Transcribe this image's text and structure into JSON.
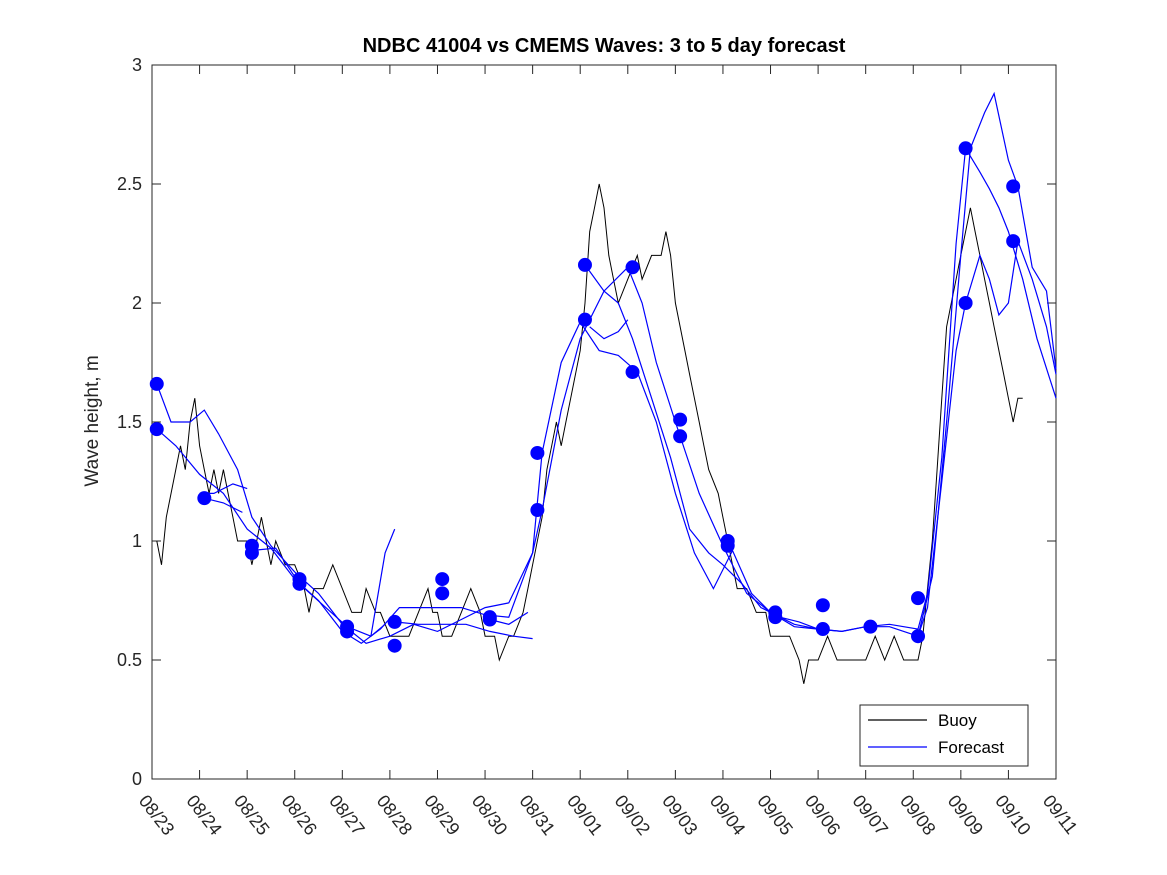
{
  "chart_data": {
    "type": "line",
    "title": "NDBC 41004 vs CMEMS Waves: 3 to 5 day forecast",
    "xlabel": "",
    "ylabel": "Wave height, m",
    "xlim": [
      0,
      19
    ],
    "ylim": [
      0,
      3
    ],
    "xticks": [
      0,
      1,
      2,
      3,
      4,
      5,
      6,
      7,
      8,
      9,
      10,
      11,
      12,
      13,
      14,
      15,
      16,
      17,
      18,
      19
    ],
    "xtick_labels": [
      "08/23",
      "08/24",
      "08/25",
      "08/26",
      "08/27",
      "08/28",
      "08/29",
      "08/30",
      "08/31",
      "09/01",
      "09/02",
      "09/03",
      "09/04",
      "09/05",
      "09/06",
      "09/07",
      "09/08",
      "09/09",
      "09/10",
      "09/11"
    ],
    "yticks": [
      0,
      0.5,
      1,
      1.5,
      2,
      2.5,
      3
    ],
    "ytick_labels": [
      "0",
      "0.5",
      "1",
      "1.5",
      "2",
      "2.5",
      "3"
    ],
    "legend": {
      "position": "bottom-right",
      "entries": [
        "Buoy",
        "Forecast"
      ]
    },
    "colors": {
      "buoy": "#000000",
      "forecast": "#0000ff",
      "axis": "#262626"
    },
    "buoy": {
      "name": "Buoy",
      "points": [
        [
          0.1,
          1.0
        ],
        [
          0.2,
          0.9
        ],
        [
          0.3,
          1.1
        ],
        [
          0.5,
          1.3
        ],
        [
          0.6,
          1.4
        ],
        [
          0.7,
          1.3
        ],
        [
          0.8,
          1.5
        ],
        [
          0.9,
          1.6
        ],
        [
          1.0,
          1.4
        ],
        [
          1.1,
          1.3
        ],
        [
          1.2,
          1.2
        ],
        [
          1.3,
          1.3
        ],
        [
          1.4,
          1.2
        ],
        [
          1.5,
          1.3
        ],
        [
          1.6,
          1.2
        ],
        [
          1.7,
          1.1
        ],
        [
          1.8,
          1.0
        ],
        [
          2.0,
          1.0
        ],
        [
          2.1,
          0.9
        ],
        [
          2.2,
          1.0
        ],
        [
          2.3,
          1.1
        ],
        [
          2.5,
          0.9
        ],
        [
          2.6,
          1.0
        ],
        [
          2.8,
          0.9
        ],
        [
          3.0,
          0.9
        ],
        [
          3.2,
          0.8
        ],
        [
          3.3,
          0.7
        ],
        [
          3.4,
          0.8
        ],
        [
          3.6,
          0.8
        ],
        [
          3.8,
          0.9
        ],
        [
          4.0,
          0.8
        ],
        [
          4.2,
          0.7
        ],
        [
          4.4,
          0.7
        ],
        [
          4.5,
          0.8
        ],
        [
          4.7,
          0.7
        ],
        [
          4.8,
          0.7
        ],
        [
          5.0,
          0.6
        ],
        [
          5.2,
          0.6
        ],
        [
          5.4,
          0.6
        ],
        [
          5.6,
          0.7
        ],
        [
          5.8,
          0.8
        ],
        [
          5.9,
          0.7
        ],
        [
          6.0,
          0.7
        ],
        [
          6.1,
          0.6
        ],
        [
          6.3,
          0.6
        ],
        [
          6.5,
          0.7
        ],
        [
          6.7,
          0.8
        ],
        [
          6.9,
          0.7
        ],
        [
          7.0,
          0.6
        ],
        [
          7.2,
          0.6
        ],
        [
          7.3,
          0.5
        ],
        [
          7.5,
          0.6
        ],
        [
          7.6,
          0.6
        ],
        [
          7.8,
          0.7
        ],
        [
          7.9,
          0.8
        ],
        [
          8.0,
          0.9
        ],
        [
          8.2,
          1.1
        ],
        [
          8.3,
          1.3
        ],
        [
          8.4,
          1.4
        ],
        [
          8.5,
          1.5
        ],
        [
          8.6,
          1.4
        ],
        [
          8.7,
          1.5
        ],
        [
          8.8,
          1.6
        ],
        [
          9.0,
          1.8
        ],
        [
          9.1,
          2.0
        ],
        [
          9.2,
          2.3
        ],
        [
          9.3,
          2.4
        ],
        [
          9.4,
          2.5
        ],
        [
          9.5,
          2.4
        ],
        [
          9.6,
          2.2
        ],
        [
          9.7,
          2.1
        ],
        [
          9.8,
          2.0
        ],
        [
          10.0,
          2.1
        ],
        [
          10.2,
          2.2
        ],
        [
          10.3,
          2.1
        ],
        [
          10.5,
          2.2
        ],
        [
          10.7,
          2.2
        ],
        [
          10.8,
          2.3
        ],
        [
          10.9,
          2.2
        ],
        [
          11.0,
          2.0
        ],
        [
          11.2,
          1.8
        ],
        [
          11.3,
          1.7
        ],
        [
          11.4,
          1.6
        ],
        [
          11.5,
          1.5
        ],
        [
          11.6,
          1.4
        ],
        [
          11.7,
          1.3
        ],
        [
          11.9,
          1.2
        ],
        [
          12.0,
          1.1
        ],
        [
          12.2,
          0.9
        ],
        [
          12.3,
          0.8
        ],
        [
          12.5,
          0.8
        ],
        [
          12.7,
          0.7
        ],
        [
          12.9,
          0.7
        ],
        [
          13.0,
          0.6
        ],
        [
          13.2,
          0.6
        ],
        [
          13.4,
          0.6
        ],
        [
          13.6,
          0.5
        ],
        [
          13.7,
          0.4
        ],
        [
          13.8,
          0.5
        ],
        [
          14.0,
          0.5
        ],
        [
          14.2,
          0.6
        ],
        [
          14.4,
          0.5
        ],
        [
          14.6,
          0.5
        ],
        [
          14.8,
          0.5
        ],
        [
          15.0,
          0.5
        ],
        [
          15.2,
          0.6
        ],
        [
          15.4,
          0.5
        ],
        [
          15.6,
          0.6
        ],
        [
          15.8,
          0.5
        ],
        [
          16.0,
          0.5
        ],
        [
          16.1,
          0.5
        ],
        [
          16.2,
          0.6
        ],
        [
          16.3,
          0.8
        ],
        [
          16.4,
          1.0
        ],
        [
          16.5,
          1.3
        ],
        [
          16.6,
          1.6
        ],
        [
          16.7,
          1.9
        ],
        [
          16.8,
          2.0
        ],
        [
          16.9,
          2.1
        ],
        [
          17.0,
          2.2
        ],
        [
          17.1,
          2.3
        ],
        [
          17.2,
          2.4
        ],
        [
          17.3,
          2.3
        ],
        [
          17.4,
          2.2
        ],
        [
          17.5,
          2.1
        ],
        [
          17.6,
          2.0
        ],
        [
          17.7,
          1.9
        ],
        [
          17.8,
          1.8
        ],
        [
          17.9,
          1.7
        ],
        [
          18.0,
          1.6
        ],
        [
          18.1,
          1.5
        ],
        [
          18.2,
          1.6
        ],
        [
          18.3,
          1.6
        ]
      ]
    },
    "forecast_series": [
      {
        "name": "Forecast",
        "points": [
          [
            0.1,
            1.66
          ],
          [
            0.4,
            1.5
          ],
          [
            0.8,
            1.5
          ],
          [
            1.1,
            1.55
          ],
          [
            1.4,
            1.45
          ],
          [
            1.8,
            1.3
          ],
          [
            2.1,
            1.1
          ],
          [
            2.5,
            0.98
          ],
          [
            3.0,
            0.87
          ],
          [
            3.5,
            0.78
          ],
          [
            4.0,
            0.65
          ],
          [
            4.5,
            0.57
          ],
          [
            5.0,
            0.6
          ],
          [
            5.5,
            0.65
          ],
          [
            6.0,
            0.62
          ],
          [
            6.5,
            0.67
          ],
          [
            7.0,
            0.72
          ],
          [
            7.5,
            0.74
          ],
          [
            8.0,
            0.95
          ],
          [
            8.2,
            1.13
          ],
          [
            8.6,
            1.55
          ],
          [
            9.0,
            1.85
          ],
          [
            9.5,
            2.05
          ],
          [
            10.0,
            2.15
          ],
          [
            10.3,
            2.0
          ],
          [
            10.6,
            1.75
          ],
          [
            11.0,
            1.5
          ],
          [
            11.5,
            1.2
          ],
          [
            12.0,
            0.98
          ],
          [
            12.5,
            0.78
          ],
          [
            13.0,
            0.7
          ],
          [
            13.5,
            0.65
          ],
          [
            14.0,
            0.63
          ],
          [
            14.5,
            0.62
          ],
          [
            15.0,
            0.64
          ],
          [
            15.5,
            0.65
          ],
          [
            16.1,
            0.63
          ],
          [
            16.3,
            0.78
          ],
          [
            16.6,
            1.35
          ],
          [
            16.9,
            2.25
          ],
          [
            17.1,
            2.65
          ],
          [
            17.4,
            2.55
          ],
          [
            17.6,
            2.48
          ],
          [
            17.8,
            2.4
          ],
          [
            18.0,
            2.3
          ],
          [
            18.3,
            2.1
          ],
          [
            18.6,
            1.85
          ],
          [
            19.0,
            1.6
          ]
        ]
      },
      {
        "name": "Forecast",
        "points": [
          [
            0.1,
            1.47
          ],
          [
            0.5,
            1.4
          ],
          [
            1.0,
            1.28
          ],
          [
            1.5,
            1.2
          ],
          [
            2.0,
            1.05
          ],
          [
            2.5,
            0.97
          ],
          [
            3.0,
            0.84
          ],
          [
            3.5,
            0.75
          ],
          [
            4.0,
            0.62
          ],
          [
            4.4,
            0.57
          ],
          [
            4.8,
            0.63
          ],
          [
            5.2,
            0.72
          ],
          [
            5.6,
            0.72
          ],
          [
            6.0,
            0.72
          ],
          [
            6.5,
            0.72
          ],
          [
            7.0,
            0.69
          ],
          [
            7.5,
            0.68
          ],
          [
            8.0,
            0.95
          ],
          [
            8.2,
            1.37
          ],
          [
            8.6,
            1.75
          ],
          [
            9.0,
            1.92
          ],
          [
            9.4,
            1.8
          ],
          [
            9.8,
            1.78
          ],
          [
            10.2,
            1.71
          ],
          [
            10.6,
            1.5
          ],
          [
            11.0,
            1.2
          ],
          [
            11.4,
            0.95
          ],
          [
            11.8,
            0.8
          ],
          [
            12.2,
            0.96
          ],
          [
            12.6,
            0.78
          ],
          [
            13.0,
            0.7
          ],
          [
            13.5,
            0.64
          ],
          [
            14.0,
            0.63
          ],
          [
            14.5,
            0.62
          ],
          [
            15.0,
            0.64
          ],
          [
            15.5,
            0.64
          ],
          [
            16.1,
            0.6
          ],
          [
            16.3,
            0.72
          ],
          [
            16.6,
            1.25
          ],
          [
            16.9,
            1.8
          ],
          [
            17.1,
            2.0
          ],
          [
            17.4,
            2.2
          ],
          [
            17.6,
            2.1
          ],
          [
            17.8,
            1.95
          ],
          [
            18.0,
            2.0
          ],
          [
            18.2,
            2.26
          ],
          [
            18.5,
            2.1
          ],
          [
            18.8,
            1.9
          ],
          [
            19.0,
            1.7
          ]
        ]
      },
      {
        "name": "Forecast",
        "points": [
          [
            1.0,
            1.2
          ],
          [
            1.3,
            1.2
          ],
          [
            1.7,
            1.24
          ],
          [
            2.0,
            1.22
          ]
        ]
      },
      {
        "name": "Forecast",
        "points": [
          [
            1.1,
            1.18
          ],
          [
            1.5,
            1.16
          ],
          [
            1.9,
            1.12
          ]
        ]
      },
      {
        "name": "Forecast",
        "points": [
          [
            2.1,
            0.96
          ],
          [
            2.6,
            0.97
          ],
          [
            3.1,
            0.82
          ],
          [
            3.6,
            0.73
          ],
          [
            4.1,
            0.64
          ],
          [
            4.6,
            0.6
          ],
          [
            4.9,
            0.65
          ]
        ]
      },
      {
        "name": "Forecast",
        "points": [
          [
            4.6,
            0.6
          ],
          [
            4.9,
            0.95
          ],
          [
            5.1,
            1.05
          ]
        ]
      },
      {
        "name": "Forecast",
        "points": [
          [
            5.1,
            0.66
          ],
          [
            5.6,
            0.65
          ],
          [
            6.1,
            0.65
          ],
          [
            6.6,
            0.65
          ],
          [
            7.1,
            0.62
          ],
          [
            7.6,
            0.6
          ],
          [
            8.0,
            0.59
          ]
        ]
      },
      {
        "name": "Forecast",
        "points": [
          [
            7.1,
            0.67
          ],
          [
            7.5,
            0.65
          ],
          [
            7.9,
            0.7
          ]
        ]
      },
      {
        "name": "Forecast",
        "points": [
          [
            9.1,
            2.16
          ],
          [
            9.5,
            2.05
          ],
          [
            9.8,
            2.0
          ],
          [
            10.1,
            1.85
          ],
          [
            10.5,
            1.6
          ],
          [
            10.9,
            1.35
          ],
          [
            11.3,
            1.05
          ],
          [
            11.7,
            0.95
          ],
          [
            12.0,
            0.9
          ],
          [
            12.4,
            0.82
          ],
          [
            12.8,
            0.72
          ],
          [
            13.2,
            0.68
          ],
          [
            13.6,
            0.66
          ],
          [
            14.0,
            0.63
          ]
        ]
      },
      {
        "name": "Forecast",
        "points": [
          [
            9.2,
            1.9
          ],
          [
            9.5,
            1.85
          ],
          [
            9.8,
            1.88
          ],
          [
            10.0,
            1.93
          ]
        ]
      },
      {
        "name": "Forecast",
        "points": [
          [
            16.1,
            0.6
          ],
          [
            16.4,
            0.85
          ],
          [
            16.7,
            1.5
          ],
          [
            17.0,
            2.2
          ],
          [
            17.2,
            2.65
          ],
          [
            17.5,
            2.8
          ],
          [
            17.7,
            2.88
          ],
          [
            18.0,
            2.6
          ],
          [
            18.2,
            2.49
          ],
          [
            18.5,
            2.15
          ],
          [
            18.8,
            2.05
          ],
          [
            19.0,
            1.72
          ]
        ]
      }
    ],
    "forecast_markers": [
      [
        0.1,
        1.66
      ],
      [
        0.1,
        1.47
      ],
      [
        1.1,
        1.18
      ],
      [
        2.1,
        0.98
      ],
      [
        2.1,
        0.95
      ],
      [
        3.1,
        0.84
      ],
      [
        3.1,
        0.82
      ],
      [
        4.1,
        0.64
      ],
      [
        4.1,
        0.62
      ],
      [
        5.1,
        0.66
      ],
      [
        5.1,
        0.56
      ],
      [
        6.1,
        0.84
      ],
      [
        6.1,
        0.78
      ],
      [
        7.1,
        0.68
      ],
      [
        7.1,
        0.67
      ],
      [
        8.1,
        1.37
      ],
      [
        8.1,
        1.13
      ],
      [
        9.1,
        2.16
      ],
      [
        9.1,
        1.93
      ],
      [
        10.1,
        2.15
      ],
      [
        10.1,
        1.71
      ],
      [
        11.1,
        1.51
      ],
      [
        11.1,
        1.44
      ],
      [
        12.1,
        1.0
      ],
      [
        12.1,
        0.98
      ],
      [
        13.1,
        0.7
      ],
      [
        13.1,
        0.68
      ],
      [
        14.1,
        0.73
      ],
      [
        14.1,
        0.63
      ],
      [
        15.1,
        0.64
      ],
      [
        16.1,
        0.76
      ],
      [
        16.1,
        0.6
      ],
      [
        17.1,
        2.65
      ],
      [
        17.1,
        2.0
      ],
      [
        18.1,
        2.49
      ],
      [
        18.1,
        2.26
      ]
    ]
  }
}
